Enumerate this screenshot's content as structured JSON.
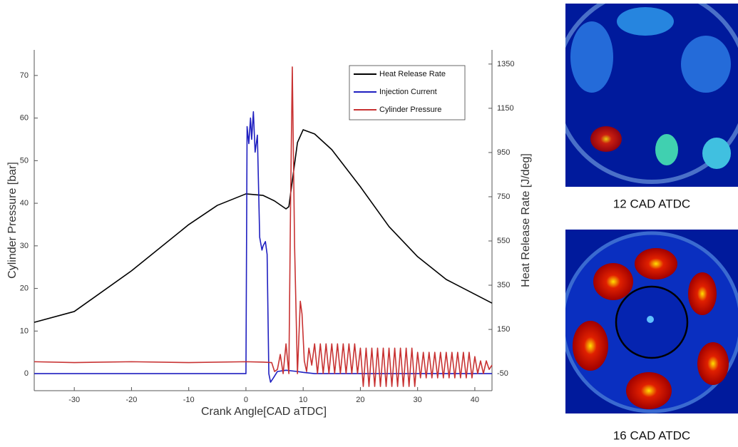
{
  "chart_data": {
    "type": "line",
    "x_label": "Crank Angle[CAD aTDC]",
    "y_label": "Cylinder Pressure [bar]",
    "y2_label": "Heat Release Rate [J/deg]",
    "xlim": [
      -37,
      43
    ],
    "xticks": [
      -30,
      -20,
      -10,
      0,
      10,
      20,
      30,
      40
    ],
    "ylim": [
      -4,
      76
    ],
    "yticks": [
      0,
      10,
      20,
      30,
      40,
      50,
      60,
      70
    ],
    "y2lim": [
      -127,
      1414
    ],
    "y2ticks": [
      -50,
      150,
      350,
      550,
      750,
      950,
      1150,
      1350
    ],
    "legend": "upper right",
    "series": [
      {
        "name": "Heat Release Rate",
        "color": "#000000",
        "axis": "y2",
        "x": [
          -37,
          -30,
          -20,
          -10,
          -5,
          0,
          3,
          5,
          7,
          7.5,
          9,
          10,
          12,
          15,
          20,
          25,
          30,
          35,
          43
        ],
        "values": [
          182,
          231,
          415,
          624,
          711,
          763,
          756,
          731,
          695,
          705,
          995,
          1053,
          1034,
          963,
          795,
          615,
          479,
          376,
          269
        ]
      },
      {
        "name": "Injection Current",
        "color": "#1f1fc0",
        "x": [
          -37,
          -20,
          0,
          0.2,
          0.5,
          0.8,
          1,
          1.3,
          1.6,
          2,
          2.4,
          2.8,
          3,
          3.4,
          3.7,
          4,
          4.3,
          4.8,
          5.5,
          7,
          9,
          10,
          12,
          20,
          43
        ],
        "values": [
          0,
          0,
          0,
          58,
          54,
          60,
          55,
          61.5,
          52,
          56,
          32,
          29,
          30,
          31,
          28,
          0,
          -2,
          -1,
          0.5,
          0.8,
          0.5,
          0.3,
          0,
          0,
          0
        ]
      },
      {
        "name": "Cylinder Pressure",
        "color": "#c83232",
        "x": [
          -37,
          -30,
          -20,
          -10,
          0,
          3,
          4.5,
          5,
          5.5,
          6,
          6.5,
          7,
          7.5,
          7.8,
          8.1,
          8.5,
          9,
          9.5,
          9.8,
          10.2,
          10.6,
          11,
          11.5,
          12,
          12.5,
          13,
          13.5,
          14,
          14.5,
          15,
          15.5,
          16,
          16.5,
          17,
          17.5,
          18,
          18.5,
          19,
          19.5,
          20,
          20.5,
          21,
          21.5,
          22,
          22.5,
          23,
          23.5,
          24,
          24.5,
          25,
          25.5,
          26,
          26.5,
          27,
          27.5,
          28,
          28.5,
          29,
          29.5,
          30,
          30.5,
          31,
          31.5,
          32,
          32.5,
          33,
          33.5,
          34,
          34.5,
          35,
          35.5,
          36,
          36.5,
          37,
          37.5,
          38,
          38.5,
          39,
          39.5,
          40,
          40.5,
          41,
          41.5,
          42,
          42.5,
          43
        ],
        "values": [
          2.8,
          2.6,
          2.8,
          2.6,
          2.8,
          2.7,
          2.6,
          0.5,
          1,
          4.5,
          0,
          7,
          0,
          40,
          72,
          30,
          0,
          17,
          14,
          3,
          0.5,
          6,
          2,
          7,
          0,
          7,
          0,
          7,
          0,
          7,
          0,
          7,
          0,
          7,
          0,
          7,
          0,
          7,
          0,
          6,
          -3,
          6,
          -3,
          6,
          -3,
          6,
          -3,
          6,
          -3,
          6,
          -3,
          6,
          -3,
          6,
          -3,
          6,
          -3,
          6,
          -3,
          5,
          -1,
          5,
          -1,
          5,
          -1,
          5,
          -1,
          5,
          -1,
          5,
          -1,
          5,
          -1,
          5,
          -1,
          5,
          -1,
          5,
          -1,
          4,
          0,
          3,
          0,
          3,
          1,
          2
        ]
      }
    ]
  },
  "panels": [
    {
      "caption": "12 CAD ATDC"
    },
    {
      "caption": "16 CAD ATDC"
    }
  ]
}
